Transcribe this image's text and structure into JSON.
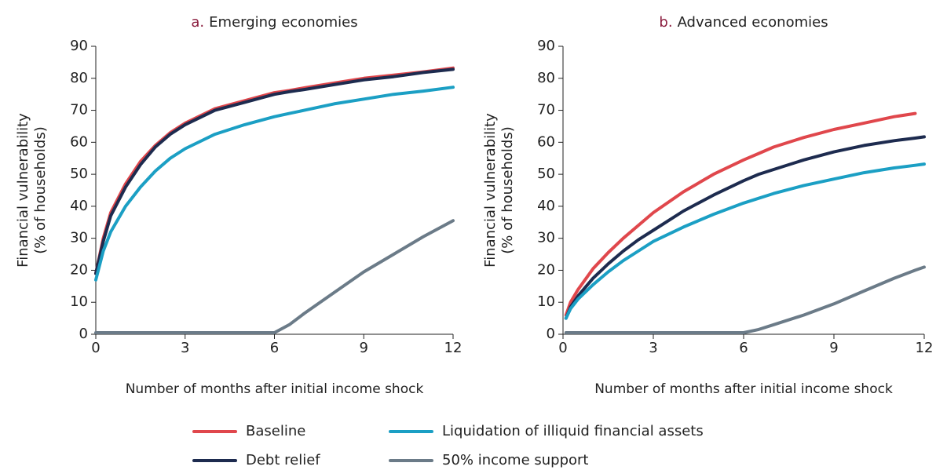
{
  "chart_data": [
    {
      "type": "line",
      "panel": "a.",
      "title": "Emerging economies",
      "ylabel": [
        "Financial vulnerability",
        "(% of households)"
      ],
      "xlabel": "Number of months after initial income shock",
      "x": [
        0,
        0.25,
        0.5,
        1,
        1.5,
        2,
        2.5,
        3,
        4,
        5,
        6,
        6.5,
        7,
        8,
        9,
        10,
        11,
        12
      ],
      "xlim": [
        0,
        12
      ],
      "xticks": [
        0,
        3,
        6,
        9,
        12
      ],
      "ylim": [
        0,
        90
      ],
      "yticks": [
        0,
        10,
        20,
        30,
        40,
        50,
        60,
        70,
        80,
        90
      ],
      "series": [
        {
          "name": "Baseline",
          "color": "#e0474c",
          "values": [
            19,
            30,
            38,
            47,
            54,
            59,
            63,
            66,
            70.5,
            73,
            75.5,
            76.2,
            77,
            78.5,
            80,
            81,
            82,
            83.2
          ]
        },
        {
          "name": "Debt relief",
          "color": "#1d2b4f",
          "values": [
            19,
            29,
            37,
            46,
            53,
            58.5,
            62.5,
            65.5,
            70,
            72.5,
            75,
            75.8,
            76.5,
            78,
            79.5,
            80.5,
            81.8,
            82.8
          ]
        },
        {
          "name": "Liquidation of illiquid financial assets",
          "color": "#1b9fc4",
          "values": [
            17,
            26,
            32,
            40,
            46,
            51,
            55,
            58,
            62.5,
            65.5,
            68,
            69,
            70,
            72,
            73.5,
            75,
            76,
            77.2
          ]
        },
        {
          "name": "50% income support",
          "color": "#6b7b88",
          "values": [
            0.5,
            0.5,
            0.5,
            0.5,
            0.5,
            0.5,
            0.5,
            0.5,
            0.5,
            0.5,
            0.5,
            3,
            6.5,
            13,
            19.5,
            25,
            30.5,
            35.5
          ]
        }
      ]
    },
    {
      "type": "line",
      "panel": "b.",
      "title": "Advanced economies",
      "ylabel": [
        "Financial vulnerability",
        "(% of households)"
      ],
      "xlabel": "Number of months after initial income shock",
      "x": [
        0.1,
        0.25,
        0.5,
        1,
        1.5,
        2,
        2.5,
        3,
        4,
        5,
        6,
        6.5,
        7,
        8,
        9,
        10,
        11,
        11.7,
        12
      ],
      "xlim": [
        0,
        12
      ],
      "xticks": [
        0,
        3,
        6,
        9,
        12
      ],
      "ylim": [
        0,
        90
      ],
      "yticks": [
        0,
        10,
        20,
        30,
        40,
        50,
        60,
        70,
        80,
        90
      ],
      "series": [
        {
          "color": "#e0474c",
          "values": [
            6,
            10,
            14,
            20.5,
            25.5,
            30,
            34,
            38,
            44.5,
            50,
            54.5,
            56.5,
            58.5,
            61.5,
            64,
            66,
            68,
            69,
            null
          ]
        },
        {
          "color": "#1d2b4f",
          "values": [
            5,
            8.5,
            12,
            17.5,
            22,
            26,
            29.5,
            32.5,
            38.5,
            43.5,
            48,
            50,
            51.5,
            54.5,
            57,
            59,
            60.5,
            61.3,
            61.7
          ]
        },
        {
          "color": "#1b9fc4",
          "values": [
            5,
            8,
            11,
            15.5,
            19.5,
            23,
            26,
            29,
            33.5,
            37.5,
            41,
            42.5,
            44,
            46.5,
            48.5,
            50.5,
            52,
            52.8,
            53.2
          ]
        },
        {
          "color": "#6b7b88",
          "values": [
            0.5,
            0.5,
            0.5,
            0.5,
            0.5,
            0.5,
            0.5,
            0.5,
            0.5,
            0.5,
            0.5,
            1.5,
            3,
            6,
            9.5,
            13.5,
            17.5,
            20,
            21
          ]
        }
      ]
    }
  ]
}
